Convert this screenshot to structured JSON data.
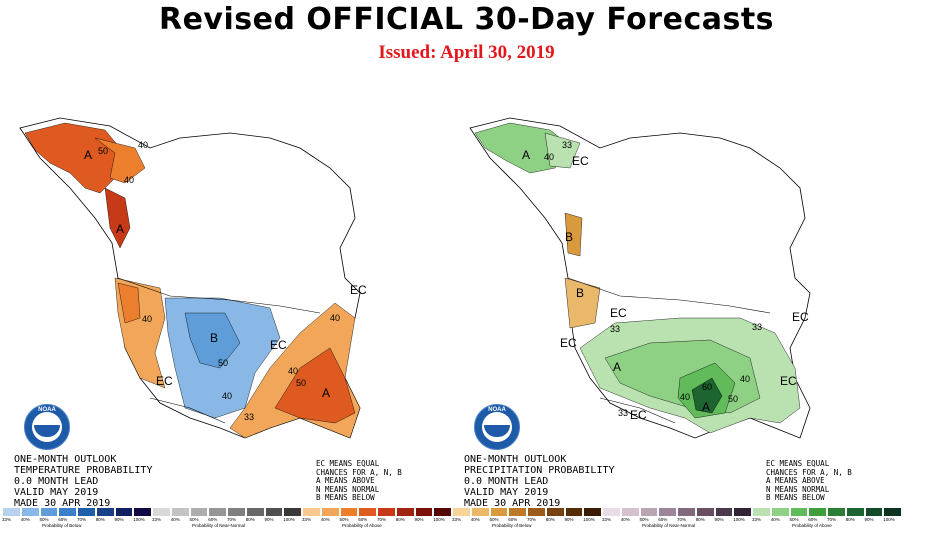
{
  "header": {
    "title": "Revised OFFICIAL 30-Day Forecasts",
    "subtitle": "Issued: April 30, 2019"
  },
  "logo_text": "NOAA",
  "panels": {
    "temperature": {
      "outlook_text": "ONE-MONTH OUTLOOK\nTEMPERATURE PROBABILITY\n0.0 MONTH LEAD\nVALID MAY 2019\nMADE 30 APR 2019",
      "legend_note": "EC MEANS EQUAL\nCHANCES FOR A, N, B\nA MEANS ABOVE\nN MEANS NORMAL\nB MEANS BELOW",
      "regions": [
        "A",
        "A",
        "B",
        "EC",
        "A",
        "EC",
        "EC"
      ],
      "contours": [
        "50",
        "40",
        "40",
        "50",
        "40",
        "40",
        "40",
        "33",
        "50",
        "40"
      ],
      "colorbars": [
        {
          "title": "Probability of Below",
          "ticks": [
            "33%",
            "40%",
            "50%",
            "60%",
            "70%",
            "80%",
            "90%",
            "100%"
          ],
          "colors": [
            "#b6d2ee",
            "#8ab8e6",
            "#5e9dd8",
            "#3a7fc7",
            "#1f5ea8",
            "#1a3f86",
            "#141e63",
            "#0f0a42"
          ]
        },
        {
          "title": "Probability of Near-Normal",
          "ticks": [
            "33%",
            "40%",
            "50%",
            "60%",
            "70%",
            "80%",
            "90%",
            "100%"
          ],
          "colors": [
            "#d9d9d9",
            "#c4c4c4",
            "#adadad",
            "#969696",
            "#7f7f7f",
            "#686868",
            "#505050",
            "#393939"
          ]
        },
        {
          "title": "Probability of Above",
          "ticks": [
            "33%",
            "40%",
            "50%",
            "60%",
            "70%",
            "80%",
            "90%",
            "100%"
          ],
          "colors": [
            "#f7c891",
            "#f2a65a",
            "#ec7f2e",
            "#de5a20",
            "#c63a18",
            "#a02412",
            "#7a120c",
            "#540706"
          ]
        }
      ]
    },
    "precipitation": {
      "outlook_text": "ONE-MONTH OUTLOOK\nPRECIPITATION PROBABILITY\n0.0 MONTH LEAD\nVALID MAY 2019\nMADE 30 APR 2019",
      "legend_note": "EC MEANS EQUAL\nCHANCES FOR A, N, B\nA MEANS ABOVE\nN MEANS NORMAL\nB MEANS BELOW",
      "regions": [
        "A",
        "EC",
        "B",
        "B",
        "EC",
        "EC",
        "A",
        "A",
        "EC",
        "EC",
        "EC"
      ],
      "contours": [
        "33",
        "40",
        "33",
        "33",
        "40",
        "50",
        "60",
        "40",
        "33"
      ],
      "colorbars": [
        {
          "title": "Probability of Below",
          "ticks": [
            "33%",
            "40%",
            "50%",
            "60%",
            "70%",
            "80%",
            "90%",
            "100%"
          ],
          "colors": [
            "#f5d59a",
            "#eab86b",
            "#d99a3e",
            "#bd7a26",
            "#9a5c18",
            "#76420f",
            "#552d09",
            "#3a1c05"
          ]
        },
        {
          "title": "Probability of Near-Normal",
          "ticks": [
            "33%",
            "40%",
            "50%",
            "60%",
            "70%",
            "80%",
            "90%",
            "100%"
          ],
          "colors": [
            "#e8dde5",
            "#d3c2ce",
            "#b9a4b3",
            "#9d8698",
            "#82697d",
            "#665062",
            "#4b384a",
            "#322333"
          ]
        },
        {
          "title": "Probability of Above",
          "ticks": [
            "33%",
            "40%",
            "50%",
            "60%",
            "70%",
            "80%",
            "90%",
            "100%"
          ],
          "colors": [
            "#b9e2b0",
            "#8fd184",
            "#62bb5a",
            "#3f9e3d",
            "#2a7f34",
            "#1d6430",
            "#134a28",
            "#0b331d"
          ]
        }
      ]
    }
  }
}
